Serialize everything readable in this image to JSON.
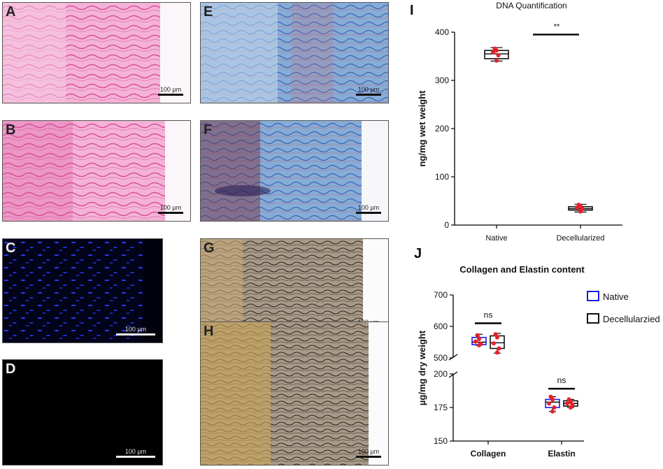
{
  "panels": [
    {
      "id": "A",
      "scale": "100 µm"
    },
    {
      "id": "B",
      "scale": "100 µm"
    },
    {
      "id": "C",
      "scale": "100 µm"
    },
    {
      "id": "D",
      "scale": "100 µm"
    },
    {
      "id": "E",
      "scale": "100 µm"
    },
    {
      "id": "F",
      "scale": "100 µm"
    },
    {
      "id": "G",
      "scale": "100 µm"
    },
    {
      "id": "H",
      "scale": "100 µm"
    }
  ],
  "colors": {
    "he_pink": "#f2a6cf",
    "he_dark": "#d9529f",
    "fluor_bg": "#02020c",
    "fluor_nuclei": "#2233ee",
    "mt_blue": "#7aa6d6",
    "mt_red": "#b23a3a",
    "vg_tan": "#b59a6a",
    "vg_dark": "#3b3026",
    "native": "#1a1aee",
    "decell": "#111111",
    "points": "#e8202a"
  },
  "chart_data": [
    {
      "panel": "I",
      "type": "box",
      "title": "DNA Quantification",
      "ylabel": "ng/mg wet weight",
      "categories": [
        "Native",
        "Decellularized"
      ],
      "ylim": [
        0,
        400
      ],
      "yticks": [
        0,
        100,
        200,
        300,
        400
      ],
      "boxes": [
        {
          "category": "Native",
          "min": 340,
          "q1": 345,
          "median": 355,
          "q3": 362,
          "max": 368,
          "points": [
            341,
            352,
            358,
            362,
            366
          ]
        },
        {
          "category": "Decellularized",
          "min": 27,
          "q1": 31,
          "median": 34,
          "q3": 38,
          "max": 43,
          "points": [
            28,
            33,
            36,
            39,
            42
          ]
        }
      ],
      "annotation": "**"
    },
    {
      "panel": "J",
      "type": "box",
      "title": "Collagen and Elastin content",
      "ylabel": "µg/mg dry weight",
      "categories": [
        "Collagen",
        "Elastin"
      ],
      "yticks_upper": [
        500,
        600,
        700
      ],
      "yticks_lower": [
        150,
        175,
        200
      ],
      "series": [
        {
          "name": "Native",
          "boxes": [
            {
              "category": "Collagen",
              "min": 540,
              "q1": 542,
              "median": 550,
              "q3": 565,
              "max": 575,
              "points": [
                540,
                545,
                552,
                560,
                572
              ]
            },
            {
              "category": "Elastin",
              "min": 172,
              "q1": 175,
              "median": 179,
              "q3": 181,
              "max": 183,
              "points": [
                172,
                175,
                178,
                181,
                183
              ]
            }
          ]
        },
        {
          "name": "Decellularzied",
          "boxes": [
            {
              "category": "Collagen",
              "min": 515,
              "q1": 530,
              "median": 548,
              "q3": 570,
              "max": 578,
              "points": [
                517,
                530,
                546,
                565,
                575
              ]
            },
            {
              "category": "Elastin",
              "min": 175,
              "q1": 176,
              "median": 178,
              "q3": 180,
              "max": 181,
              "points": [
                175,
                177,
                178,
                179,
                181
              ]
            }
          ]
        }
      ],
      "annotations": [
        "ns",
        "ns"
      ]
    }
  ]
}
